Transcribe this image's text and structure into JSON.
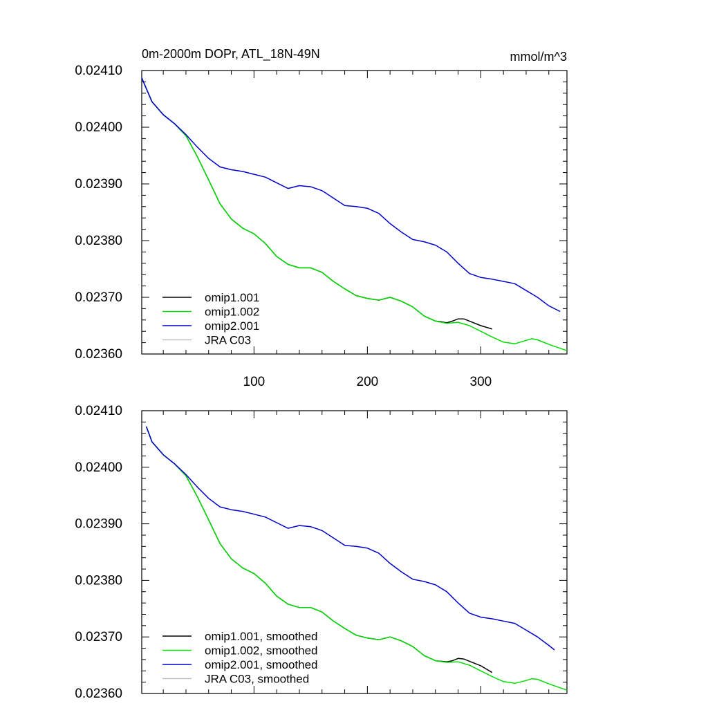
{
  "chart_data": [
    {
      "type": "line",
      "title": "0m-2000m DOPr, ATL_18N-49N",
      "units": "mmol/m^3",
      "xlim": [
        1,
        376
      ],
      "ylim": [
        0.0236,
        0.0241
      ],
      "xticks": [
        100,
        200,
        300
      ],
      "yticks": [
        0.0236,
        0.0237,
        0.0238,
        0.0239,
        0.024,
        0.0241
      ],
      "ytick_labels": [
        "0.02360",
        "0.02370",
        "0.02380",
        "0.02390",
        "0.02400",
        "0.02410"
      ],
      "legend_position": "bottom-left",
      "series": [
        {
          "name": "omip1.001",
          "color": "#000000",
          "x": [
            1,
            10,
            20,
            30,
            40,
            50,
            60,
            70,
            80,
            90,
            100,
            110,
            120,
            130,
            140,
            150,
            160,
            170,
            180,
            190,
            200,
            210,
            220,
            230,
            240,
            250,
            260,
            265,
            270,
            275,
            280,
            285,
            290,
            300,
            310
          ],
          "y": [
            0.024087,
            0.024045,
            0.024022,
            0.024006,
            0.023985,
            0.023948,
            0.023907,
            0.023865,
            0.023838,
            0.023822,
            0.023812,
            0.023795,
            0.023772,
            0.023758,
            0.023752,
            0.023752,
            0.023744,
            0.023728,
            0.023715,
            0.023703,
            0.023698,
            0.023695,
            0.0237,
            0.023693,
            0.023683,
            0.023667,
            0.023658,
            0.023657,
            0.023655,
            0.023658,
            0.023662,
            0.023662,
            0.023658,
            0.02365,
            0.023644
          ]
        },
        {
          "name": "omip1.002",
          "color": "#00dd00",
          "x": [
            1,
            10,
            20,
            30,
            40,
            50,
            60,
            70,
            80,
            90,
            100,
            110,
            120,
            130,
            140,
            150,
            160,
            170,
            180,
            190,
            200,
            210,
            220,
            230,
            240,
            250,
            260,
            270,
            280,
            290,
            300,
            310,
            320,
            330,
            340,
            345,
            350,
            360,
            370,
            376
          ],
          "y": [
            0.024087,
            0.024045,
            0.024022,
            0.024006,
            0.023985,
            0.023948,
            0.023907,
            0.023865,
            0.023838,
            0.023822,
            0.023812,
            0.023795,
            0.023772,
            0.023758,
            0.023752,
            0.023752,
            0.023744,
            0.023728,
            0.023715,
            0.023703,
            0.023698,
            0.023695,
            0.0237,
            0.023693,
            0.023683,
            0.023667,
            0.023658,
            0.023654,
            0.023656,
            0.02365,
            0.02364,
            0.02363,
            0.023621,
            0.023618,
            0.023624,
            0.023627,
            0.023625,
            0.023617,
            0.02361,
            0.023606
          ]
        },
        {
          "name": "omip2.001",
          "color": "#0000cc",
          "x": [
            1,
            10,
            20,
            30,
            40,
            50,
            60,
            70,
            80,
            90,
            100,
            110,
            120,
            130,
            140,
            150,
            160,
            170,
            180,
            190,
            200,
            210,
            220,
            230,
            240,
            250,
            260,
            270,
            280,
            290,
            300,
            310,
            320,
            330,
            340,
            350,
            360,
            370
          ],
          "y": [
            0.024087,
            0.024045,
            0.024022,
            0.024006,
            0.023987,
            0.023965,
            0.023945,
            0.02393,
            0.023925,
            0.023922,
            0.023917,
            0.023912,
            0.023902,
            0.023892,
            0.023897,
            0.023895,
            0.023888,
            0.023875,
            0.023862,
            0.02386,
            0.023857,
            0.023848,
            0.02383,
            0.023815,
            0.023802,
            0.023798,
            0.023792,
            0.02378,
            0.02376,
            0.023742,
            0.023735,
            0.023732,
            0.023728,
            0.023724,
            0.023712,
            0.0237,
            0.023685,
            0.023675
          ]
        },
        {
          "name": "JRA C03",
          "color": "#c0c0c0",
          "x": [],
          "y": []
        }
      ]
    },
    {
      "type": "line",
      "title": "",
      "units": "",
      "xlim": [
        1,
        376
      ],
      "ylim": [
        0.0236,
        0.0241
      ],
      "xticks": [
        100,
        200,
        300
      ],
      "yticks": [
        0.0236,
        0.0237,
        0.0238,
        0.0239,
        0.024,
        0.0241
      ],
      "ytick_labels": [
        "0.02360",
        "0.02370",
        "0.02380",
        "0.02390",
        "0.02400",
        "0.02410"
      ],
      "legend_position": "bottom-left",
      "series": [
        {
          "name": "omip1.001, smoothed",
          "color": "#000000",
          "x": [
            5,
            10,
            20,
            30,
            40,
            50,
            60,
            70,
            80,
            90,
            100,
            110,
            120,
            130,
            140,
            150,
            160,
            170,
            180,
            190,
            200,
            210,
            220,
            230,
            240,
            250,
            260,
            265,
            270,
            275,
            280,
            285,
            290,
            300,
            310
          ],
          "y": [
            0.024072,
            0.024045,
            0.024022,
            0.024006,
            0.023985,
            0.023948,
            0.023907,
            0.023865,
            0.023838,
            0.023822,
            0.023812,
            0.023795,
            0.023772,
            0.023758,
            0.023752,
            0.023752,
            0.023744,
            0.023728,
            0.023715,
            0.023703,
            0.023698,
            0.023695,
            0.0237,
            0.023693,
            0.023683,
            0.023667,
            0.023658,
            0.023657,
            0.023656,
            0.023658,
            0.023662,
            0.023661,
            0.023657,
            0.023649,
            0.023637
          ]
        },
        {
          "name": "omip1.002, smoothed",
          "color": "#00dd00",
          "x": [
            5,
            10,
            20,
            30,
            40,
            50,
            60,
            70,
            80,
            90,
            100,
            110,
            120,
            130,
            140,
            150,
            160,
            170,
            180,
            190,
            200,
            210,
            220,
            230,
            240,
            250,
            260,
            270,
            280,
            290,
            300,
            310,
            320,
            330,
            340,
            345,
            350,
            360,
            370,
            376
          ],
          "y": [
            0.024072,
            0.024045,
            0.024022,
            0.024006,
            0.023985,
            0.023948,
            0.023907,
            0.023865,
            0.023838,
            0.023822,
            0.023812,
            0.023795,
            0.023772,
            0.023758,
            0.023752,
            0.023752,
            0.023744,
            0.023728,
            0.023715,
            0.023703,
            0.023698,
            0.023695,
            0.0237,
            0.023693,
            0.023683,
            0.023667,
            0.023658,
            0.023655,
            0.023656,
            0.02365,
            0.02364,
            0.02363,
            0.023621,
            0.023618,
            0.023623,
            0.023626,
            0.023625,
            0.023617,
            0.02361,
            0.023606
          ]
        },
        {
          "name": "omip2.001, smoothed",
          "color": "#0000cc",
          "x": [
            5,
            10,
            20,
            30,
            40,
            50,
            60,
            70,
            80,
            90,
            100,
            110,
            120,
            130,
            140,
            150,
            160,
            170,
            180,
            190,
            200,
            210,
            220,
            230,
            240,
            250,
            260,
            270,
            280,
            290,
            300,
            310,
            320,
            330,
            340,
            350,
            360,
            365
          ],
          "y": [
            0.024072,
            0.024045,
            0.024022,
            0.024006,
            0.023987,
            0.023965,
            0.023945,
            0.02393,
            0.023925,
            0.023922,
            0.023917,
            0.023912,
            0.023902,
            0.023892,
            0.023897,
            0.023895,
            0.023888,
            0.023875,
            0.023862,
            0.02386,
            0.023857,
            0.023848,
            0.02383,
            0.023815,
            0.023802,
            0.023798,
            0.023792,
            0.02378,
            0.02376,
            0.023742,
            0.023735,
            0.023732,
            0.023728,
            0.023724,
            0.023712,
            0.0237,
            0.023685,
            0.023677
          ]
        },
        {
          "name": "JRA C03, smoothed",
          "color": "#c0c0c0",
          "x": [],
          "y": []
        }
      ]
    }
  ]
}
